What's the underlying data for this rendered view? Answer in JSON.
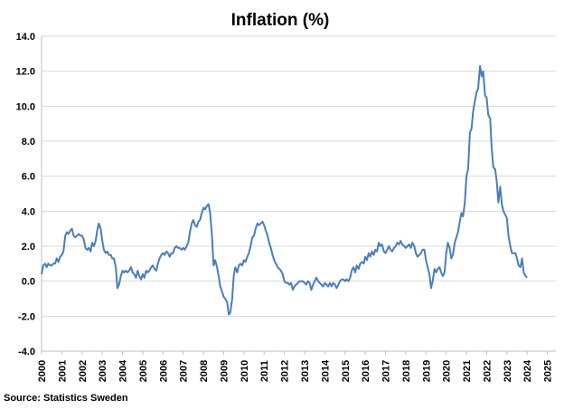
{
  "chart_data": {
    "type": "line",
    "title": "Inflation (%)",
    "source": "Source: Statistics Sweden",
    "xlabel": "",
    "ylabel": "",
    "ylim": [
      -4,
      14
    ],
    "y_ticks": [
      "14.0",
      "12.0",
      "10.0",
      "8.0",
      "6.0",
      "4.0",
      "2.0",
      "0.0",
      "-2.0",
      "-4.0"
    ],
    "x_ticks": [
      "2000",
      "2001",
      "2002",
      "2003",
      "2004",
      "2005",
      "2006",
      "2007",
      "2008",
      "2009",
      "2010",
      "2011",
      "2012",
      "2013",
      "2014",
      "2015",
      "2016",
      "2017",
      "2018",
      "2019",
      "2020",
      "2021",
      "2022",
      "2023",
      "2024",
      "2025"
    ],
    "grid": true,
    "series": [
      {
        "color": "#4a7ebb",
        "points": [
          [
            2000.0,
            0.4
          ],
          [
            2000.08,
            0.9
          ],
          [
            2000.17,
            1.0
          ],
          [
            2000.25,
            0.8
          ],
          [
            2000.33,
            1.0
          ],
          [
            2000.42,
            0.9
          ],
          [
            2000.5,
            0.9
          ],
          [
            2000.58,
            1.0
          ],
          [
            2000.67,
            1.0
          ],
          [
            2000.75,
            1.3
          ],
          [
            2000.83,
            1.1
          ],
          [
            2000.92,
            1.4
          ],
          [
            2001.0,
            1.5
          ],
          [
            2001.08,
            1.7
          ],
          [
            2001.17,
            2.6
          ],
          [
            2001.25,
            2.8
          ],
          [
            2001.33,
            2.7
          ],
          [
            2001.42,
            2.9
          ],
          [
            2001.5,
            3.0
          ],
          [
            2001.58,
            2.6
          ],
          [
            2001.67,
            2.5
          ],
          [
            2001.75,
            2.6
          ],
          [
            2001.83,
            2.7
          ],
          [
            2001.92,
            2.6
          ],
          [
            2002.0,
            2.6
          ],
          [
            2002.08,
            2.4
          ],
          [
            2002.17,
            1.9
          ],
          [
            2002.25,
            1.8
          ],
          [
            2002.33,
            1.9
          ],
          [
            2002.42,
            1.7
          ],
          [
            2002.5,
            2.2
          ],
          [
            2002.58,
            2.0
          ],
          [
            2002.67,
            2.3
          ],
          [
            2002.75,
            2.9
          ],
          [
            2002.83,
            3.3
          ],
          [
            2002.92,
            3.0
          ],
          [
            2003.0,
            2.3
          ],
          [
            2003.08,
            1.8
          ],
          [
            2003.17,
            1.6
          ],
          [
            2003.25,
            1.7
          ],
          [
            2003.33,
            1.5
          ],
          [
            2003.42,
            1.5
          ],
          [
            2003.5,
            1.3
          ],
          [
            2003.58,
            1.3
          ],
          [
            2003.67,
            0.8
          ],
          [
            2003.75,
            -0.4
          ],
          [
            2003.83,
            -0.2
          ],
          [
            2003.92,
            0.3
          ],
          [
            2004.0,
            0.6
          ],
          [
            2004.08,
            0.5
          ],
          [
            2004.17,
            0.6
          ],
          [
            2004.25,
            0.5
          ],
          [
            2004.33,
            0.6
          ],
          [
            2004.42,
            0.8
          ],
          [
            2004.5,
            0.5
          ],
          [
            2004.58,
            0.4
          ],
          [
            2004.67,
            0.2
          ],
          [
            2004.75,
            0.6
          ],
          [
            2004.83,
            0.3
          ],
          [
            2004.92,
            0.1
          ],
          [
            2005.0,
            0.4
          ],
          [
            2005.08,
            0.2
          ],
          [
            2005.17,
            0.6
          ],
          [
            2005.25,
            0.5
          ],
          [
            2005.33,
            0.6
          ],
          [
            2005.42,
            0.8
          ],
          [
            2005.5,
            0.9
          ],
          [
            2005.58,
            0.7
          ],
          [
            2005.67,
            0.6
          ],
          [
            2005.75,
            1.0
          ],
          [
            2005.83,
            1.3
          ],
          [
            2005.92,
            1.5
          ],
          [
            2006.0,
            1.6
          ],
          [
            2006.08,
            1.5
          ],
          [
            2006.17,
            1.7
          ],
          [
            2006.25,
            1.6
          ],
          [
            2006.33,
            1.4
          ],
          [
            2006.42,
            1.6
          ],
          [
            2006.5,
            1.6
          ],
          [
            2006.58,
            1.9
          ],
          [
            2006.67,
            2.0
          ],
          [
            2006.75,
            1.9
          ],
          [
            2006.83,
            1.9
          ],
          [
            2006.92,
            1.8
          ],
          [
            2007.0,
            1.9
          ],
          [
            2007.08,
            1.8
          ],
          [
            2007.17,
            2.0
          ],
          [
            2007.25,
            2.2
          ],
          [
            2007.33,
            2.8
          ],
          [
            2007.42,
            3.3
          ],
          [
            2007.5,
            3.5
          ],
          [
            2007.58,
            3.2
          ],
          [
            2007.67,
            3.1
          ],
          [
            2007.75,
            3.4
          ],
          [
            2007.83,
            3.5
          ],
          [
            2007.92,
            3.9
          ],
          [
            2008.0,
            4.2
          ],
          [
            2008.08,
            4.1
          ],
          [
            2008.17,
            4.3
          ],
          [
            2008.25,
            4.4
          ],
          [
            2008.33,
            3.9
          ],
          [
            2008.42,
            2.6
          ],
          [
            2008.5,
            0.9
          ],
          [
            2008.58,
            1.2
          ],
          [
            2008.67,
            0.8
          ],
          [
            2008.75,
            0.3
          ],
          [
            2008.83,
            -0.3
          ],
          [
            2008.92,
            -0.6
          ],
          [
            2009.0,
            -0.9
          ],
          [
            2009.08,
            -1.0
          ],
          [
            2009.17,
            -1.2
          ],
          [
            2009.25,
            -1.9
          ],
          [
            2009.33,
            -1.8
          ],
          [
            2009.42,
            -1.0
          ],
          [
            2009.5,
            0.3
          ],
          [
            2009.58,
            0.8
          ],
          [
            2009.67,
            0.5
          ],
          [
            2009.75,
            0.9
          ],
          [
            2009.83,
            1.0
          ],
          [
            2009.92,
            0.9
          ],
          [
            2010.0,
            1.2
          ],
          [
            2010.08,
            1.1
          ],
          [
            2010.17,
            1.4
          ],
          [
            2010.25,
            1.6
          ],
          [
            2010.33,
            2.0
          ],
          [
            2010.42,
            2.5
          ],
          [
            2010.5,
            2.6
          ],
          [
            2010.58,
            3.0
          ],
          [
            2010.67,
            3.3
          ],
          [
            2010.75,
            3.2
          ],
          [
            2010.83,
            3.3
          ],
          [
            2010.92,
            3.4
          ],
          [
            2011.0,
            3.2
          ],
          [
            2011.08,
            2.9
          ],
          [
            2011.17,
            2.6
          ],
          [
            2011.25,
            2.2
          ],
          [
            2011.33,
            1.9
          ],
          [
            2011.42,
            1.5
          ],
          [
            2011.5,
            1.2
          ],
          [
            2011.58,
            1.0
          ],
          [
            2011.67,
            0.8
          ],
          [
            2011.75,
            0.7
          ],
          [
            2011.83,
            0.6
          ],
          [
            2011.92,
            0.4
          ],
          [
            2012.0,
            0.0
          ],
          [
            2012.08,
            -0.1
          ],
          [
            2012.17,
            -0.1
          ],
          [
            2012.25,
            -0.2
          ],
          [
            2012.33,
            -0.1
          ],
          [
            2012.42,
            -0.5
          ],
          [
            2012.5,
            -0.3
          ],
          [
            2012.58,
            -0.2
          ],
          [
            2012.67,
            -0.1
          ],
          [
            2012.75,
            0.0
          ],
          [
            2012.83,
            0.0
          ],
          [
            2012.92,
            0.0
          ],
          [
            2013.0,
            -0.1
          ],
          [
            2013.08,
            -0.2
          ],
          [
            2013.17,
            0.0
          ],
          [
            2013.25,
            -0.1
          ],
          [
            2013.33,
            -0.5
          ],
          [
            2013.42,
            -0.2
          ],
          [
            2013.5,
            0.0
          ],
          [
            2013.58,
            0.2
          ],
          [
            2013.67,
            0.0
          ],
          [
            2013.75,
            -0.1
          ],
          [
            2013.83,
            -0.2
          ],
          [
            2013.92,
            -0.3
          ],
          [
            2014.0,
            -0.1
          ],
          [
            2014.08,
            -0.2
          ],
          [
            2014.17,
            -0.3
          ],
          [
            2014.25,
            -0.1
          ],
          [
            2014.33,
            -0.3
          ],
          [
            2014.42,
            -0.1
          ],
          [
            2014.5,
            -0.2
          ],
          [
            2014.58,
            -0.4
          ],
          [
            2014.67,
            -0.2
          ],
          [
            2014.75,
            0.0
          ],
          [
            2014.83,
            0.1
          ],
          [
            2014.92,
            0.1
          ],
          [
            2015.0,
            0.0
          ],
          [
            2015.08,
            0.1
          ],
          [
            2015.17,
            0.0
          ],
          [
            2015.25,
            0.2
          ],
          [
            2015.33,
            0.6
          ],
          [
            2015.42,
            0.8
          ],
          [
            2015.5,
            0.5
          ],
          [
            2015.58,
            0.9
          ],
          [
            2015.67,
            0.7
          ],
          [
            2015.75,
            1.0
          ],
          [
            2015.83,
            1.1
          ],
          [
            2015.92,
            1.0
          ],
          [
            2016.0,
            1.4
          ],
          [
            2016.08,
            1.2
          ],
          [
            2016.17,
            1.6
          ],
          [
            2016.25,
            1.4
          ],
          [
            2016.33,
            1.7
          ],
          [
            2016.42,
            1.5
          ],
          [
            2016.5,
            1.8
          ],
          [
            2016.58,
            1.7
          ],
          [
            2016.67,
            2.2
          ],
          [
            2016.75,
            2.0
          ],
          [
            2016.83,
            2.1
          ],
          [
            2016.92,
            1.7
          ],
          [
            2017.0,
            1.6
          ],
          [
            2017.08,
            1.8
          ],
          [
            2017.17,
            2.0
          ],
          [
            2017.25,
            1.8
          ],
          [
            2017.33,
            1.7
          ],
          [
            2017.42,
            1.9
          ],
          [
            2017.5,
            2.0
          ],
          [
            2017.58,
            2.2
          ],
          [
            2017.67,
            2.1
          ],
          [
            2017.75,
            2.3
          ],
          [
            2017.83,
            2.1
          ],
          [
            2017.92,
            2.0
          ],
          [
            2018.0,
            1.9
          ],
          [
            2018.08,
            2.0
          ],
          [
            2018.17,
            2.1
          ],
          [
            2018.25,
            1.9
          ],
          [
            2018.33,
            2.2
          ],
          [
            2018.42,
            2.0
          ],
          [
            2018.5,
            1.6
          ],
          [
            2018.58,
            1.4
          ],
          [
            2018.67,
            1.5
          ],
          [
            2018.75,
            1.6
          ],
          [
            2018.83,
            1.8
          ],
          [
            2018.92,
            1.8
          ],
          [
            2019.0,
            1.2
          ],
          [
            2019.08,
            0.8
          ],
          [
            2019.17,
            0.4
          ],
          [
            2019.25,
            -0.4
          ],
          [
            2019.33,
            0.0
          ],
          [
            2019.42,
            0.7
          ],
          [
            2019.5,
            0.5
          ],
          [
            2019.58,
            0.7
          ],
          [
            2019.67,
            0.8
          ],
          [
            2019.75,
            0.5
          ],
          [
            2019.83,
            0.3
          ],
          [
            2019.92,
            0.5
          ],
          [
            2020.0,
            1.6
          ],
          [
            2020.08,
            2.2
          ],
          [
            2020.17,
            1.9
          ],
          [
            2020.25,
            1.3
          ],
          [
            2020.33,
            1.5
          ],
          [
            2020.42,
            2.2
          ],
          [
            2020.5,
            2.5
          ],
          [
            2020.58,
            2.8
          ],
          [
            2020.67,
            3.4
          ],
          [
            2020.75,
            3.9
          ],
          [
            2020.83,
            3.7
          ],
          [
            2020.92,
            4.5
          ],
          [
            2021.0,
            6.0
          ],
          [
            2021.08,
            6.4
          ],
          [
            2021.17,
            8.5
          ],
          [
            2021.25,
            8.7
          ],
          [
            2021.33,
            9.7
          ],
          [
            2021.42,
            10.3
          ],
          [
            2021.5,
            10.8
          ],
          [
            2021.58,
            11.0
          ],
          [
            2021.67,
            12.3
          ],
          [
            2021.75,
            11.7
          ],
          [
            2021.83,
            12.0
          ],
          [
            2021.92,
            10.6
          ],
          [
            2022.0,
            10.5
          ],
          [
            2022.08,
            9.5
          ],
          [
            2022.17,
            9.3
          ],
          [
            2022.25,
            7.6
          ],
          [
            2022.33,
            6.5
          ],
          [
            2022.42,
            6.4
          ],
          [
            2022.5,
            5.7
          ],
          [
            2022.58,
            4.5
          ],
          [
            2022.67,
            5.4
          ],
          [
            2022.75,
            4.4
          ],
          [
            2022.83,
            4.0
          ],
          [
            2022.92,
            3.8
          ],
          [
            2023.0,
            3.6
          ],
          [
            2023.08,
            2.6
          ],
          [
            2023.17,
            2.0
          ],
          [
            2023.25,
            1.6
          ],
          [
            2023.33,
            1.6
          ],
          [
            2023.42,
            1.6
          ],
          [
            2023.5,
            1.3
          ],
          [
            2023.58,
            0.9
          ],
          [
            2023.67,
            0.8
          ],
          [
            2023.75,
            1.3
          ],
          [
            2023.83,
            0.5
          ],
          [
            2023.92,
            0.3
          ],
          [
            2024.0,
            0.2
          ]
        ]
      }
    ]
  }
}
